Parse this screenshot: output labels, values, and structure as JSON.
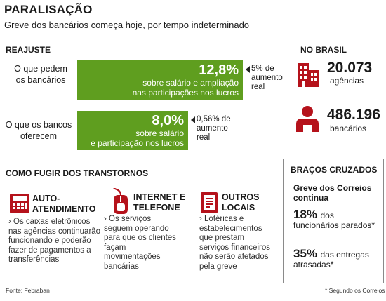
{
  "header": {
    "title": "PARALISAÇÃO",
    "subtitle": "Greve dos bancários começa hoje, por tempo indeterminado"
  },
  "reajuste": {
    "heading": "REAJUSTE",
    "rows": [
      {
        "label_line1": "O que pedem",
        "label_line2": "os bancários",
        "big": "12,8%",
        "desc_line1": "sobre salário e ampliação",
        "desc_line2": "nas participações nos lucros",
        "note_line1": "5% de",
        "note_line2": "aumento",
        "note_line3": "real"
      },
      {
        "label_line1": "O que os bancos",
        "label_line2": "oferecem",
        "big": "8,0%",
        "desc_line1": "sobre salário",
        "desc_line2": "e participação nos lucros",
        "note_line1": "0,56% de",
        "note_line2": "aumento",
        "note_line3": "real"
      }
    ],
    "bar_color": "#5f9e1f"
  },
  "no_brasil": {
    "heading": "NO BRASIL",
    "stats": [
      {
        "value": "20.073",
        "label": "agências",
        "icon": "building-icon"
      },
      {
        "value": "486.196",
        "label": "bancários",
        "icon": "person-icon"
      }
    ],
    "accent": "#b5121b"
  },
  "fugir": {
    "heading": "COMO FUGIR DOS TRANSTORNOS",
    "items": [
      {
        "title_line1": "AUTO-",
        "title_line2": "ATENDIMENTO",
        "desc": [
          "› Os caixas eletrônicos",
          "nas agências continuarão",
          "funcionando e poderão",
          "fazer de pagamentos a",
          "transferências"
        ],
        "icon": "atm-icon"
      },
      {
        "title_line1": "INTERNET E",
        "title_line2": "TELEFONE",
        "desc": [
          "› Os serviços",
          "seguem operando",
          "para que os clientes",
          "façam",
          "movimentações",
          "bancárias"
        ],
        "icon": "mouse-icon"
      },
      {
        "title_line1": "OUTROS",
        "title_line2": "LOCAIS",
        "desc": [
          "› Lotéricas e",
          "estabelecimentos",
          "que prestam",
          "serviços financeiros",
          "não serão afetados",
          "pela greve"
        ],
        "icon": "document-icon"
      }
    ]
  },
  "bracos": {
    "heading": "BRAÇOS CRUZADOS",
    "sub_line1": "Greve dos Correios",
    "sub_line2": "continua",
    "stat1_value": "18%",
    "stat1_text1": "dos",
    "stat1_text2": "funcionários parados*",
    "stat2_value": "35%",
    "stat2_text1": "das entregas",
    "stat2_text2": "atrasadas*"
  },
  "footer": {
    "source": "Fonte: Febraban",
    "footnote": "* Segundo os Correios"
  }
}
